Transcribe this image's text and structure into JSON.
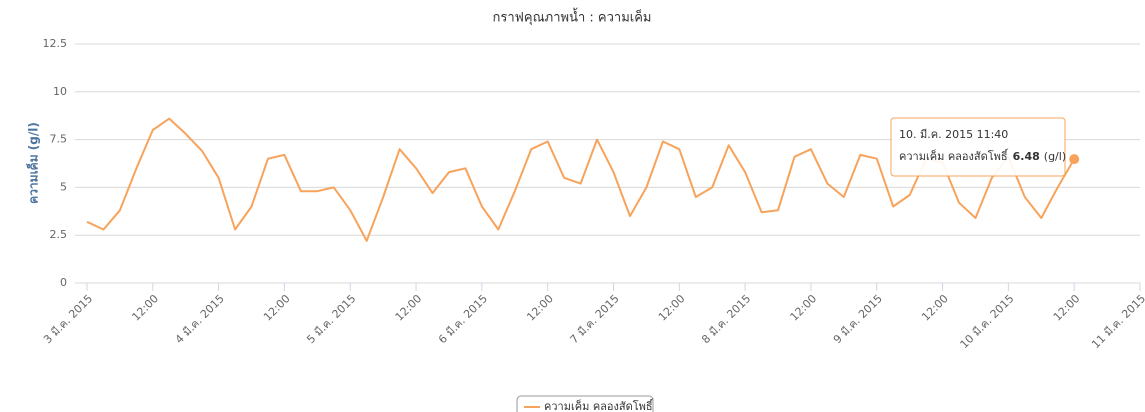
{
  "chart_data": {
    "type": "line",
    "title": "กราฟคุณภาพน้ำ : ความเค็ม",
    "y_label": "ความเค็ม (g/l)",
    "categories": [
      "3 มี.ค. 2015",
      null,
      null,
      null,
      "12:00",
      null,
      null,
      null,
      "4 มี.ค. 2015",
      null,
      null,
      null,
      "12:00",
      null,
      null,
      null,
      "5 มี.ค. 2015",
      null,
      null,
      null,
      "12:00",
      null,
      null,
      null,
      "6 มี.ค. 2015",
      null,
      null,
      null,
      "12:00",
      null,
      null,
      null,
      "7 มี.ค. 2015",
      null,
      null,
      null,
      "12:00",
      null,
      null,
      null,
      "8 มี.ค. 2015",
      null,
      null,
      null,
      "12:00",
      null,
      null,
      null,
      "9 มี.ค. 2015",
      null,
      null,
      null,
      "12:00",
      null,
      null,
      null,
      "10 มี.ค. 2015",
      null,
      null,
      null,
      "12:00",
      null,
      null,
      null,
      "11 มี.ค. 2015"
    ],
    "series": [
      {
        "name": "ความเค็ม คลองสัดโพธิ์",
        "color": "#f7a35c",
        "values": [
          3.2,
          2.8,
          3.8,
          6.0,
          8.0,
          8.6,
          7.8,
          6.9,
          5.5,
          2.8,
          4.0,
          6.5,
          6.7,
          4.8,
          4.8,
          5.0,
          3.8,
          2.2,
          4.5,
          7.0,
          6.0,
          4.7,
          5.8,
          6.0,
          4.0,
          2.8,
          4.8,
          7.0,
          7.4,
          5.5,
          5.2,
          7.5,
          5.8,
          3.5,
          5.0,
          7.4,
          7.0,
          4.5,
          5.0,
          7.2,
          5.8,
          3.7,
          3.8,
          6.6,
          7.0,
          5.2,
          4.5,
          6.7,
          6.5,
          4.0,
          4.6,
          6.5,
          6.3,
          4.2,
          3.4,
          5.5,
          6.6,
          4.5,
          3.4,
          5.0,
          6.48,
          null,
          null,
          null,
          null
        ]
      }
    ],
    "ylim": [
      0,
      12.5
    ],
    "yticks": [
      0,
      2.5,
      5,
      7.5,
      10,
      12.5
    ],
    "grid": true,
    "legend": "bottom",
    "tooltip": {
      "title": "10. มี.ค. 2015 11:40",
      "point": 60,
      "unit": "(g/l)"
    }
  }
}
